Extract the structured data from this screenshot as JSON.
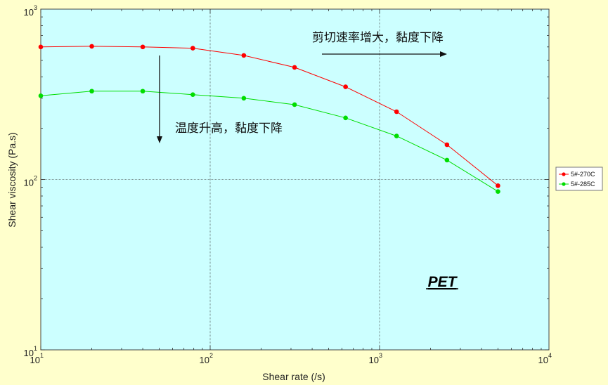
{
  "chart_data": {
    "type": "line",
    "title": "",
    "xlabel": "Shear rate (/s)",
    "ylabel": "Shear viscosity (Pa.s)",
    "x_scale": "log",
    "y_scale": "log",
    "xlim": [
      10,
      10000
    ],
    "ylim": [
      10,
      1000
    ],
    "x_ticks": [
      {
        "base": "10",
        "exp": "1"
      },
      {
        "base": "10",
        "exp": "2"
      },
      {
        "base": "10",
        "exp": "3"
      },
      {
        "base": "10",
        "exp": "4"
      }
    ],
    "y_ticks": [
      {
        "base": "10",
        "exp": "1"
      },
      {
        "base": "10",
        "exp": "2"
      },
      {
        "base": "10",
        "exp": "3"
      }
    ],
    "grid": true,
    "legend_position": "right",
    "series": [
      {
        "name": "5#-270C",
        "color": "#ff0000",
        "x": [
          10,
          20,
          40,
          79,
          158,
          315,
          630,
          1260,
          2500,
          5000
        ],
        "y": [
          600,
          605,
          600,
          590,
          535,
          455,
          350,
          250,
          160,
          92
        ]
      },
      {
        "name": "5#-285C",
        "color": "#00dd00",
        "x": [
          10,
          20,
          40,
          79,
          158,
          315,
          630,
          1260,
          2500,
          5000
        ],
        "y": [
          310,
          330,
          330,
          315,
          300,
          275,
          230,
          180,
          130,
          85
        ]
      }
    ],
    "annotations": [
      {
        "text": "剪切速率增大，黏度下降"
      },
      {
        "text": "温度升高，黏度下降"
      },
      {
        "text": "PET"
      }
    ]
  },
  "colors": {
    "page_background": "#ffffcc",
    "plot_background": "#ccffff",
    "axis": "#333333"
  }
}
